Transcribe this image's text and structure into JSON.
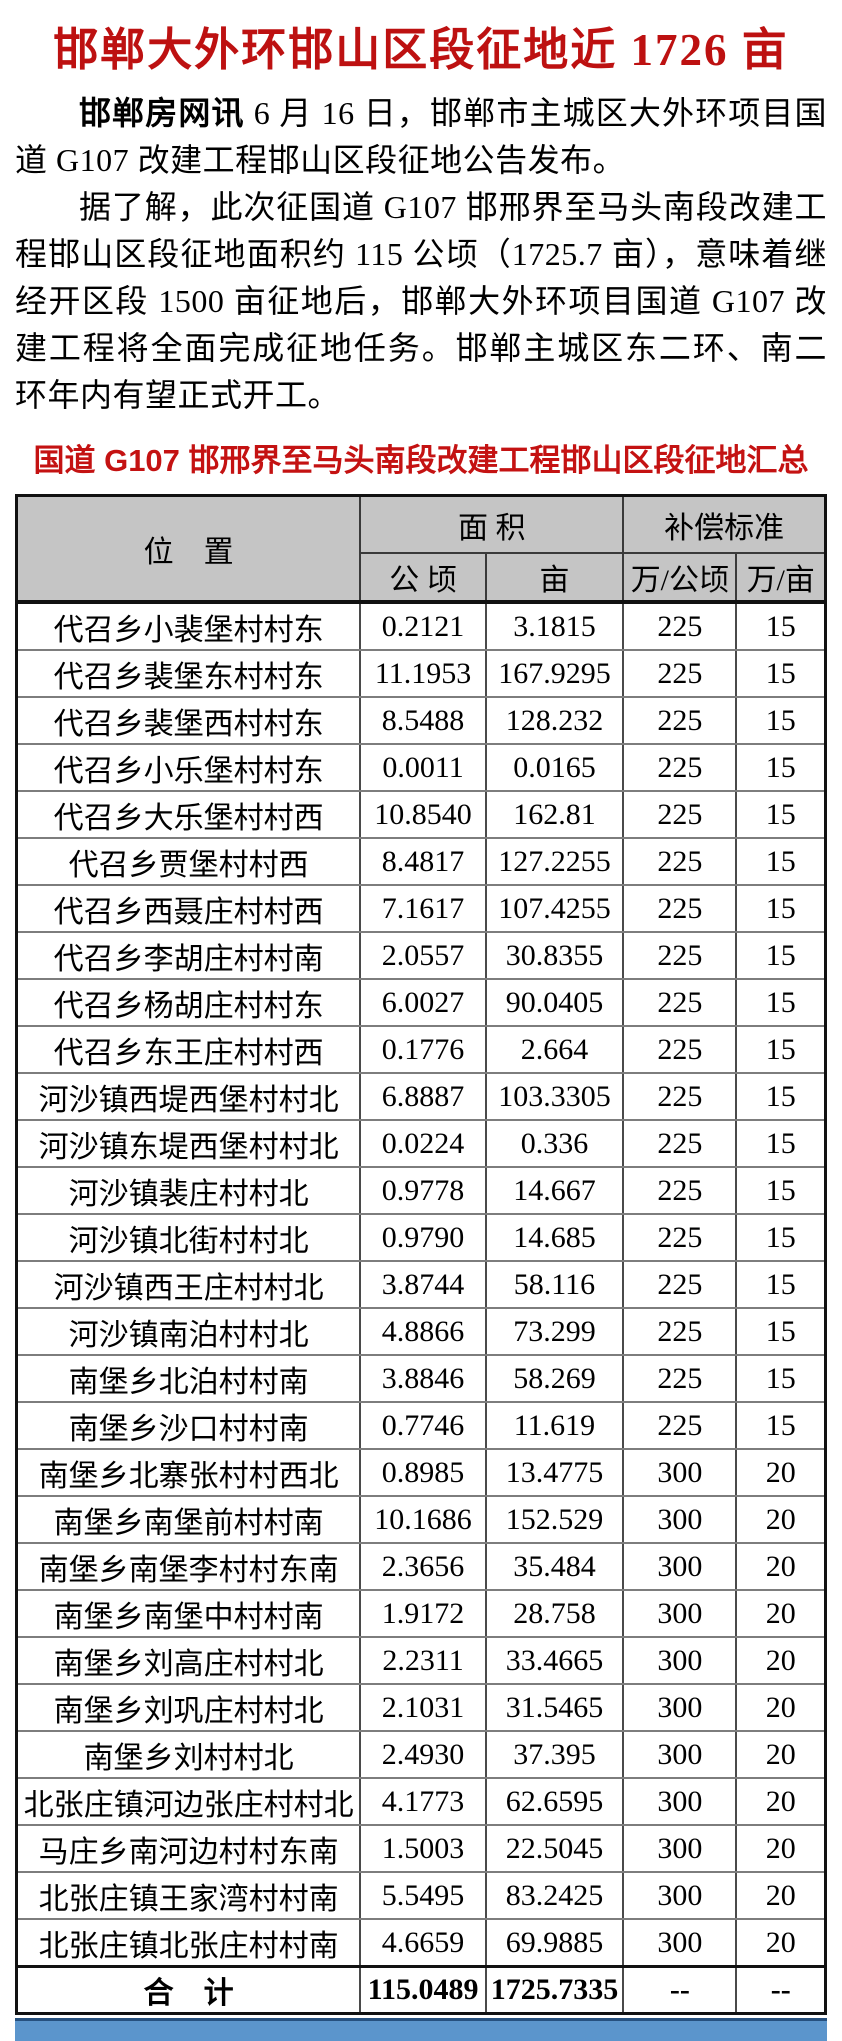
{
  "article": {
    "title": "邯郸大外环邯山区段征地近 1726 亩",
    "p1_lead": "邯郸房网讯",
    "p1_rest": " 6 月 16 日，邯郸市主城区大外环项目国道 G107 改建工程邯山区段征地公告发布。",
    "p2": "据了解，此次征国道 G107 邯邢界至马头南段改建工程邯山区段征地面积约 115 公顷（1725.7 亩），意味着继经开区段 1500 亩征地后，邯郸大外环项目国道 G107 改建工程将全面完成征地任务。邯郸主城区东二环、南二环年内有望正式开工。"
  },
  "table": {
    "title": "国道 G107 邯邢界至马头南段改建工程邯山区段征地汇总",
    "headers": {
      "location": "位　置",
      "area": "面 积",
      "compensation": "补偿标准",
      "hectare": "公 顷",
      "mu": "亩",
      "wan_per_hectare": "万/公顷",
      "wan_per_mu": "万/亩"
    },
    "rows": [
      {
        "location": "代召乡小裴堡村村东",
        "hectare": "0.2121",
        "mu": "3.1815",
        "per_hectare": "225",
        "per_mu": "15"
      },
      {
        "location": "代召乡裴堡东村村东",
        "hectare": "11.1953",
        "mu": "167.9295",
        "per_hectare": "225",
        "per_mu": "15"
      },
      {
        "location": "代召乡裴堡西村村东",
        "hectare": "8.5488",
        "mu": "128.232",
        "per_hectare": "225",
        "per_mu": "15"
      },
      {
        "location": "代召乡小乐堡村村东",
        "hectare": "0.0011",
        "mu": "0.0165",
        "per_hectare": "225",
        "per_mu": "15"
      },
      {
        "location": "代召乡大乐堡村村西",
        "hectare": "10.8540",
        "mu": "162.81",
        "per_hectare": "225",
        "per_mu": "15"
      },
      {
        "location": "代召乡贾堡村村西",
        "hectare": "8.4817",
        "mu": "127.2255",
        "per_hectare": "225",
        "per_mu": "15"
      },
      {
        "location": "代召乡西聂庄村村西",
        "hectare": "7.1617",
        "mu": "107.4255",
        "per_hectare": "225",
        "per_mu": "15"
      },
      {
        "location": "代召乡李胡庄村村南",
        "hectare": "2.0557",
        "mu": "30.8355",
        "per_hectare": "225",
        "per_mu": "15"
      },
      {
        "location": "代召乡杨胡庄村村东",
        "hectare": "6.0027",
        "mu": "90.0405",
        "per_hectare": "225",
        "per_mu": "15"
      },
      {
        "location": "代召乡东王庄村村西",
        "hectare": "0.1776",
        "mu": "2.664",
        "per_hectare": "225",
        "per_mu": "15"
      },
      {
        "location": "河沙镇西堤西堡村村北",
        "hectare": "6.8887",
        "mu": "103.3305",
        "per_hectare": "225",
        "per_mu": "15"
      },
      {
        "location": "河沙镇东堤西堡村村北",
        "hectare": "0.0224",
        "mu": "0.336",
        "per_hectare": "225",
        "per_mu": "15"
      },
      {
        "location": "河沙镇裴庄村村北",
        "hectare": "0.9778",
        "mu": "14.667",
        "per_hectare": "225",
        "per_mu": "15"
      },
      {
        "location": "河沙镇北街村村北",
        "hectare": "0.9790",
        "mu": "14.685",
        "per_hectare": "225",
        "per_mu": "15"
      },
      {
        "location": "河沙镇西王庄村村北",
        "hectare": "3.8744",
        "mu": "58.116",
        "per_hectare": "225",
        "per_mu": "15"
      },
      {
        "location": "河沙镇南泊村村北",
        "hectare": "4.8866",
        "mu": "73.299",
        "per_hectare": "225",
        "per_mu": "15"
      },
      {
        "location": "南堡乡北泊村村南",
        "hectare": "3.8846",
        "mu": "58.269",
        "per_hectare": "225",
        "per_mu": "15"
      },
      {
        "location": "南堡乡沙口村村南",
        "hectare": "0.7746",
        "mu": "11.619",
        "per_hectare": "225",
        "per_mu": "15"
      },
      {
        "location": "南堡乡北寨张村村西北",
        "hectare": "0.8985",
        "mu": "13.4775",
        "per_hectare": "300",
        "per_mu": "20"
      },
      {
        "location": "南堡乡南堡前村村南",
        "hectare": "10.1686",
        "mu": "152.529",
        "per_hectare": "300",
        "per_mu": "20"
      },
      {
        "location": "南堡乡南堡李村村东南",
        "hectare": "2.3656",
        "mu": "35.484",
        "per_hectare": "300",
        "per_mu": "20"
      },
      {
        "location": "南堡乡南堡中村村南",
        "hectare": "1.9172",
        "mu": "28.758",
        "per_hectare": "300",
        "per_mu": "20"
      },
      {
        "location": "南堡乡刘高庄村村北",
        "hectare": "2.2311",
        "mu": "33.4665",
        "per_hectare": "300",
        "per_mu": "20"
      },
      {
        "location": "南堡乡刘巩庄村村北",
        "hectare": "2.1031",
        "mu": "31.5465",
        "per_hectare": "300",
        "per_mu": "20"
      },
      {
        "location": "南堡乡刘村村北",
        "hectare": "2.4930",
        "mu": "37.395",
        "per_hectare": "300",
        "per_mu": "20"
      },
      {
        "location": "北张庄镇河边张庄村村北",
        "hectare": "4.1773",
        "mu": "62.6595",
        "per_hectare": "300",
        "per_mu": "20"
      },
      {
        "location": "马庄乡南河边村村东南",
        "hectare": "1.5003",
        "mu": "22.5045",
        "per_hectare": "300",
        "per_mu": "20"
      },
      {
        "location": "北张庄镇王家湾村村南",
        "hectare": "5.5495",
        "mu": "83.2425",
        "per_hectare": "300",
        "per_mu": "20"
      },
      {
        "location": "北张庄镇北张庄村村南",
        "hectare": "4.6659",
        "mu": "69.9885",
        "per_hectare": "300",
        "per_mu": "20"
      }
    ],
    "total": {
      "label": "合　计",
      "hectare": "115.0489",
      "mu": "1725.7335",
      "per_hectare": "--",
      "per_mu": "--"
    }
  },
  "colors": {
    "title_red": "#bd1111",
    "subtitle_red": "#c41212",
    "header_gray": "#c5c5c5",
    "banner_blue": "#5b95cc"
  }
}
